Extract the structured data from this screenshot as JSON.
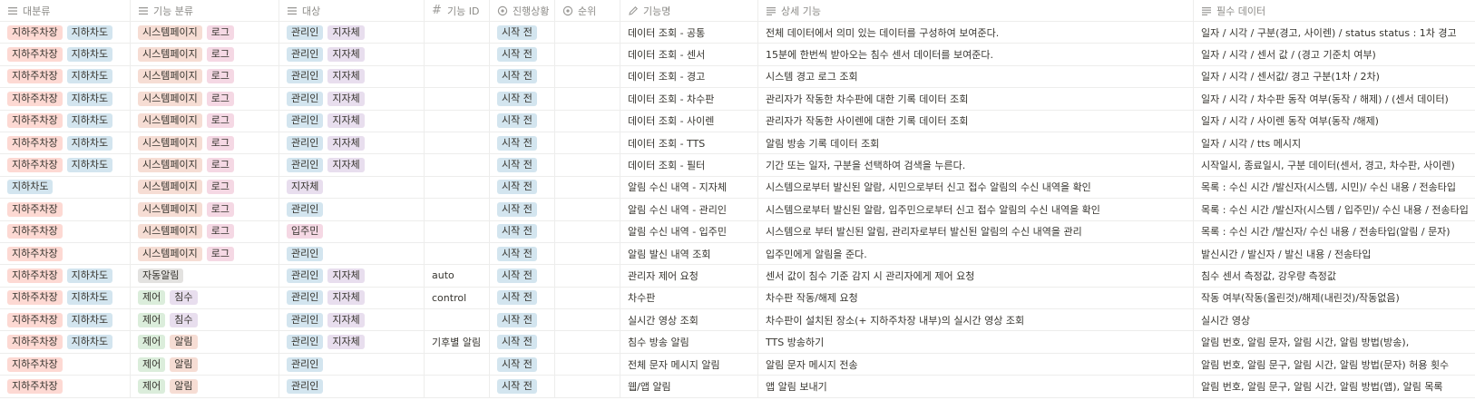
{
  "headers": [
    {
      "label": "대분류",
      "icon": "list-icon"
    },
    {
      "label": "기능 분류",
      "icon": "list-icon"
    },
    {
      "label": "대상",
      "icon": "list-icon"
    },
    {
      "label": "기능 ID",
      "icon": "hash-icon"
    },
    {
      "label": "진행상황",
      "icon": "status-icon"
    },
    {
      "label": "순위",
      "icon": "status-icon"
    },
    {
      "label": "기능명",
      "icon": "pencil-icon"
    },
    {
      "label": "상세 기능",
      "icon": "text-icon"
    },
    {
      "label": "필수 데이터",
      "icon": "text-icon"
    }
  ],
  "colors": {
    "red": "#fdd9d3",
    "blue": "#d3e5ef",
    "orange": "#f6ddd4",
    "pink": "#f5d8e4",
    "purple": "#e8deee",
    "green": "#dbeddb",
    "gray": "#e3e2e0"
  },
  "rows": [
    {
      "cat": [
        [
          "지하주차장",
          "red"
        ],
        [
          "지하차도",
          "blue"
        ]
      ],
      "func": [
        [
          "시스템페이지",
          "orange"
        ],
        [
          "로그",
          "pink"
        ]
      ],
      "target": [
        [
          "관리인",
          "blue"
        ],
        [
          "지자체",
          "purple"
        ]
      ],
      "id": "",
      "status": "시작 전",
      "rank": "",
      "name": "데이터 조회 - 공통",
      "detail": "전체 데이터에서 의미 있는 데이터를 구성하여 보여준다.",
      "required": "일자 / 시각 / 구분(경고, 사이렌) / status status : 1차 경고"
    },
    {
      "cat": [
        [
          "지하주차장",
          "red"
        ],
        [
          "지하차도",
          "blue"
        ]
      ],
      "func": [
        [
          "시스템페이지",
          "orange"
        ],
        [
          "로그",
          "pink"
        ]
      ],
      "target": [
        [
          "관리인",
          "blue"
        ],
        [
          "지자체",
          "purple"
        ]
      ],
      "id": "",
      "status": "시작 전",
      "rank": "",
      "name": "데이터 조회 - 센서",
      "detail": "15분에 한번씩 받아오는 침수 센서 데이터를 보여준다.",
      "required": "일자 / 시각 / 센서 값 / (경고 기준치 여부)"
    },
    {
      "cat": [
        [
          "지하주차장",
          "red"
        ],
        [
          "지하차도",
          "blue"
        ]
      ],
      "func": [
        [
          "시스템페이지",
          "orange"
        ],
        [
          "로그",
          "pink"
        ]
      ],
      "target": [
        [
          "관리인",
          "blue"
        ],
        [
          "지자체",
          "purple"
        ]
      ],
      "id": "",
      "status": "시작 전",
      "rank": "",
      "name": "데이터 조회 - 경고",
      "detail": "시스템 경고 로그 조회",
      "required": "일자 / 시각 / 센서값/ 경고 구분(1차 / 2차)"
    },
    {
      "cat": [
        [
          "지하주차장",
          "red"
        ],
        [
          "지하차도",
          "blue"
        ]
      ],
      "func": [
        [
          "시스템페이지",
          "orange"
        ],
        [
          "로그",
          "pink"
        ]
      ],
      "target": [
        [
          "관리인",
          "blue"
        ],
        [
          "지자체",
          "purple"
        ]
      ],
      "id": "",
      "status": "시작 전",
      "rank": "",
      "name": "데이터 조회 - 차수판",
      "detail": "관리자가 작동한 차수판에 대한 기록 데이터 조회",
      "required": "일자 / 시각 / 차수판 동작 여부(동작 / 해제) / (센서 데이터)"
    },
    {
      "cat": [
        [
          "지하주차장",
          "red"
        ],
        [
          "지하차도",
          "blue"
        ]
      ],
      "func": [
        [
          "시스템페이지",
          "orange"
        ],
        [
          "로그",
          "pink"
        ]
      ],
      "target": [
        [
          "관리인",
          "blue"
        ],
        [
          "지자체",
          "purple"
        ]
      ],
      "id": "",
      "status": "시작 전",
      "rank": "",
      "name": "데이터 조회 - 사이렌",
      "detail": "관리자가 작동한 사이렌에 대한 기록 데이터 조회",
      "required": "일자 / 시각 / 사이렌 동작 여부(동작 /해제)"
    },
    {
      "cat": [
        [
          "지하주차장",
          "red"
        ],
        [
          "지하차도",
          "blue"
        ]
      ],
      "func": [
        [
          "시스템페이지",
          "orange"
        ],
        [
          "로그",
          "pink"
        ]
      ],
      "target": [
        [
          "관리인",
          "blue"
        ],
        [
          "지자체",
          "purple"
        ]
      ],
      "id": "",
      "status": "시작 전",
      "rank": "",
      "name": "데이터 조회 - TTS",
      "detail": "알림 방송 기록 데이터 조회",
      "required": "일자 / 시각 / tts 메시지"
    },
    {
      "cat": [
        [
          "지하주차장",
          "red"
        ],
        [
          "지하차도",
          "blue"
        ]
      ],
      "func": [
        [
          "시스템페이지",
          "orange"
        ],
        [
          "로그",
          "pink"
        ]
      ],
      "target": [
        [
          "관리인",
          "blue"
        ],
        [
          "지자체",
          "purple"
        ]
      ],
      "id": "",
      "status": "시작 전",
      "rank": "",
      "name": "데이터 조회 - 필터",
      "detail": "기간 또는 일자, 구분을 선택하여 검색을 누른다.",
      "required": "시작일시, 종료일시, 구분 데이터(센서, 경고, 차수판, 사이렌)"
    },
    {
      "cat": [
        [
          "지하차도",
          "blue"
        ]
      ],
      "func": [
        [
          "시스템페이지",
          "orange"
        ],
        [
          "로그",
          "pink"
        ]
      ],
      "target": [
        [
          "지자체",
          "purple"
        ]
      ],
      "id": "",
      "status": "시작 전",
      "rank": "",
      "name": "알림 수신 내역 - 지자체",
      "detail": "시스템으로부터 발신된 알람, 시민으로부터 신고 접수 알림의 수신 내역을 확인",
      "required": "목록 : 수신 시간 /발신자(시스템, 시민)/ 수신 내용 / 전송타입"
    },
    {
      "cat": [
        [
          "지하주차장",
          "red"
        ]
      ],
      "func": [
        [
          "시스템페이지",
          "orange"
        ],
        [
          "로그",
          "pink"
        ]
      ],
      "target": [
        [
          "관리인",
          "blue"
        ]
      ],
      "id": "",
      "status": "시작 전",
      "rank": "",
      "name": "알림 수신 내역 - 관리인",
      "detail": "시스템으로부터 발신된 알람, 입주민으로부터 신고 접수 알림의 수신 내역을 확인",
      "required": "목록 : 수신 시간 /발신자(시스템 / 입주민)/ 수신 내용 / 전송타입"
    },
    {
      "cat": [
        [
          "지하주차장",
          "red"
        ]
      ],
      "func": [
        [
          "시스템페이지",
          "orange"
        ],
        [
          "로그",
          "pink"
        ]
      ],
      "target": [
        [
          "입주민",
          "pink"
        ]
      ],
      "id": "",
      "status": "시작 전",
      "rank": "",
      "name": "알림 수신 내역 - 입주민",
      "detail": "시스템으로 부터 발신된 알림, 관리자로부터 발신된 알림의 수신 내역을 관리",
      "required": "목록 : 수신 시간 /발신자/ 수신 내용 / 전송타입(알림 / 문자)"
    },
    {
      "cat": [
        [
          "지하주차장",
          "red"
        ]
      ],
      "func": [
        [
          "시스템페이지",
          "orange"
        ],
        [
          "로그",
          "pink"
        ]
      ],
      "target": [
        [
          "관리인",
          "blue"
        ]
      ],
      "id": "",
      "status": "시작 전",
      "rank": "",
      "name": "알림 발신 내역 조회",
      "detail": "입주민에게 알림을 준다.",
      "required": "발신시간 / 발신자 / 발신 내용 / 전송타입"
    },
    {
      "cat": [
        [
          "지하주차장",
          "red"
        ],
        [
          "지하차도",
          "blue"
        ]
      ],
      "func": [
        [
          "자동알림",
          "gray"
        ]
      ],
      "target": [
        [
          "관리인",
          "blue"
        ],
        [
          "지자체",
          "purple"
        ]
      ],
      "id": "auto",
      "status": "시작 전",
      "rank": "",
      "name": "관리자 제어 요청",
      "detail": "센서 값이 침수 기준 감지 시 관리자에게 제어 요청",
      "required": "침수 센서 측정값, 강우량 측정값"
    },
    {
      "cat": [
        [
          "지하주차장",
          "red"
        ],
        [
          "지하차도",
          "blue"
        ]
      ],
      "func": [
        [
          "제어",
          "green"
        ],
        [
          "침수",
          "purple"
        ]
      ],
      "target": [
        [
          "관리인",
          "blue"
        ],
        [
          "지자체",
          "purple"
        ]
      ],
      "id": "control",
      "status": "시작 전",
      "rank": "",
      "name": "차수판",
      "detail": "차수판 작동/해제 요청",
      "required": "작동 여부(작동(올린것)/해제(내린것)/작동없음)"
    },
    {
      "cat": [
        [
          "지하주차장",
          "red"
        ],
        [
          "지하차도",
          "blue"
        ]
      ],
      "func": [
        [
          "제어",
          "green"
        ],
        [
          "침수",
          "purple"
        ]
      ],
      "target": [
        [
          "관리인",
          "blue"
        ],
        [
          "지자체",
          "purple"
        ]
      ],
      "id": "",
      "status": "시작 전",
      "rank": "",
      "name": "실시간 영상 조회",
      "detail": "차수판이 설치된 장소(+ 지하주차장 내부)의 실시간 영상 조회",
      "required": "실시간 영상"
    },
    {
      "cat": [
        [
          "지하주차장",
          "red"
        ],
        [
          "지하차도",
          "blue"
        ]
      ],
      "func": [
        [
          "제어",
          "green"
        ],
        [
          "알림",
          "orange"
        ]
      ],
      "target": [
        [
          "관리인",
          "blue"
        ],
        [
          "지자체",
          "purple"
        ]
      ],
      "id": "기후별 알림 제",
      "status": "시작 전",
      "rank": "",
      "name": "침수 방송 알림",
      "detail": "TTS 방송하기",
      "required": "알림 번호, 알림 문자, 알림 시간, 알림 방법(방송),"
    },
    {
      "cat": [
        [
          "지하주차장",
          "red"
        ]
      ],
      "func": [
        [
          "제어",
          "green"
        ],
        [
          "알림",
          "orange"
        ]
      ],
      "target": [
        [
          "관리인",
          "blue"
        ]
      ],
      "id": "",
      "status": "시작 전",
      "rank": "",
      "name": "전체 문자 메시지 알림",
      "detail": "알림 문자 메시지 전송",
      "required": "알림 번호, 알림 문구, 알림 시간, 알림 방법(문자) 허용 횟수"
    },
    {
      "cat": [
        [
          "지하주차장",
          "red"
        ]
      ],
      "func": [
        [
          "제어",
          "green"
        ],
        [
          "알림",
          "orange"
        ]
      ],
      "target": [
        [
          "관리인",
          "blue"
        ]
      ],
      "id": "",
      "status": "시작 전",
      "rank": "",
      "name": "웹/앱 알림",
      "detail": "앱 알림 보내기",
      "required": "알림 번호, 알림 문구, 알림 시간, 알림 방법(앱), 알림 목록"
    }
  ]
}
